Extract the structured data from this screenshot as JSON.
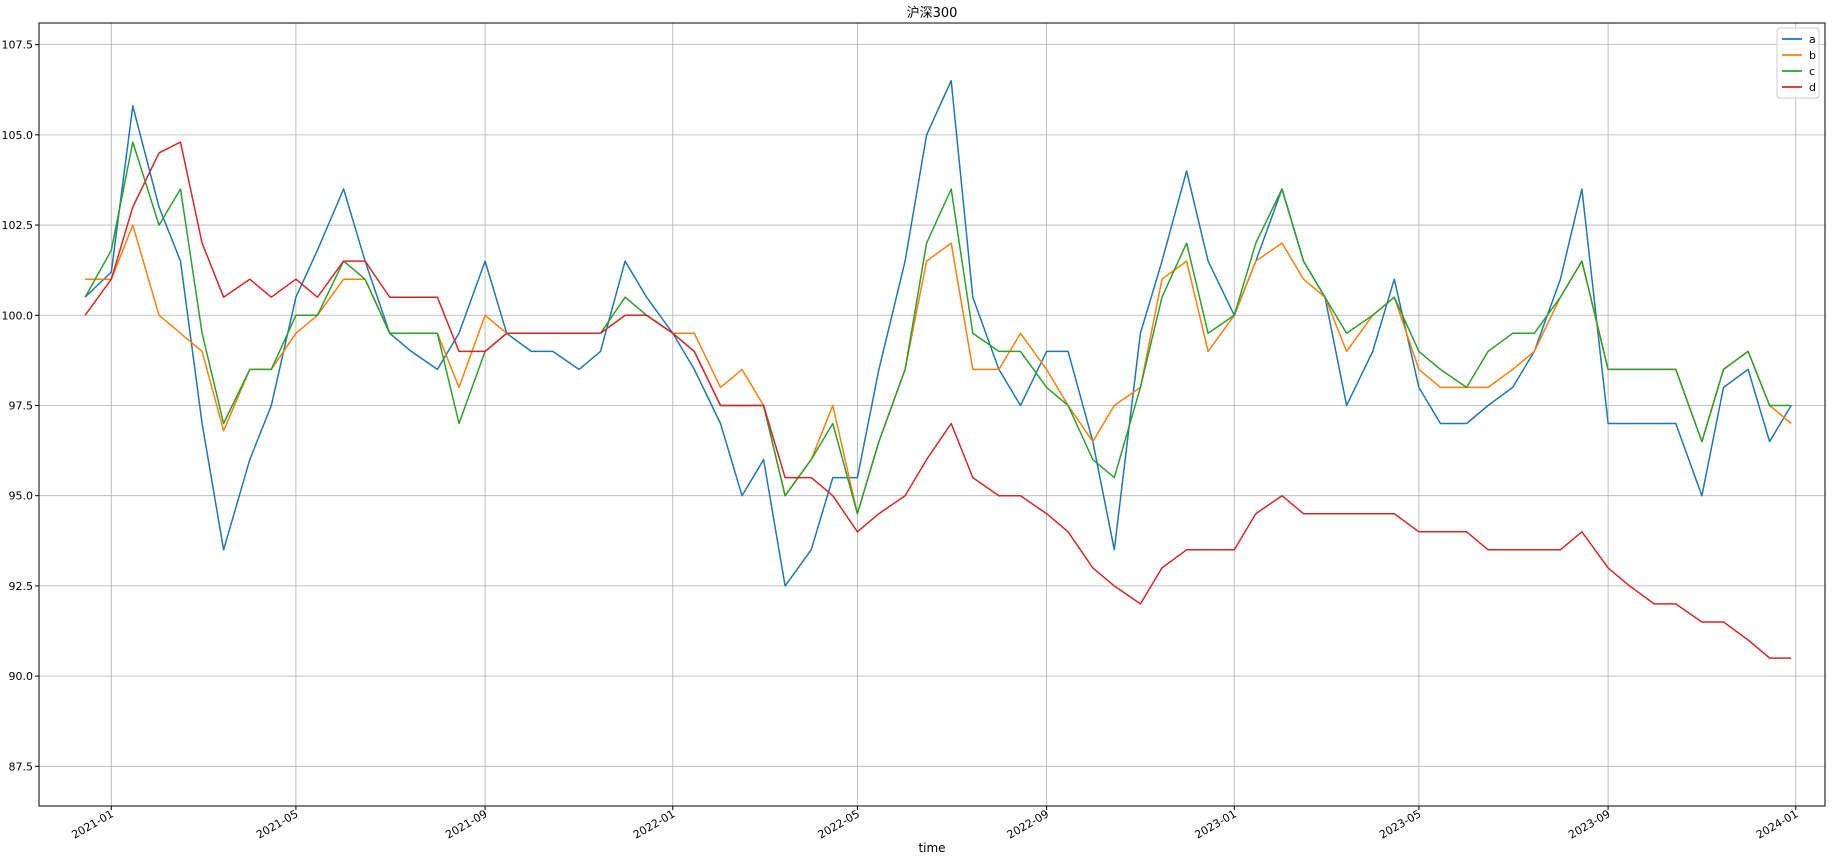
{
  "chart_data": {
    "type": "line",
    "title": "沪深300",
    "xlabel": "time",
    "ylabel": "",
    "x_axis_type": "date",
    "xlim": [
      "2020-11-15",
      "2024-01-20"
    ],
    "ylim": [
      86.4,
      108.1
    ],
    "grid": true,
    "legend_position": "top-right",
    "x_ticks": [
      "2021-01",
      "2021-05",
      "2021-09",
      "2022-01",
      "2022-05",
      "2022-09",
      "2023-01",
      "2023-05",
      "2023-09",
      "2024-01"
    ],
    "y_ticks": [
      87.5,
      90.0,
      92.5,
      95.0,
      97.5,
      100.0,
      102.5,
      105.0,
      107.5
    ],
    "x": [
      "2020-12-15",
      "2021-01-01",
      "2021-01-15",
      "2021-02-01",
      "2021-02-15",
      "2021-03-01",
      "2021-03-15",
      "2021-04-01",
      "2021-04-15",
      "2021-05-01",
      "2021-05-15",
      "2021-06-01",
      "2021-06-15",
      "2021-07-01",
      "2021-07-15",
      "2021-08-01",
      "2021-08-15",
      "2021-09-01",
      "2021-09-15",
      "2021-10-01",
      "2021-10-15",
      "2021-11-01",
      "2021-11-15",
      "2021-12-01",
      "2021-12-15",
      "2022-01-01",
      "2022-01-15",
      "2022-02-01",
      "2022-02-15",
      "2022-03-01",
      "2022-03-15",
      "2022-04-01",
      "2022-04-15",
      "2022-05-01",
      "2022-05-15",
      "2022-06-01",
      "2022-06-15",
      "2022-07-01",
      "2022-07-15",
      "2022-08-01",
      "2022-08-15",
      "2022-09-01",
      "2022-09-15",
      "2022-10-01",
      "2022-10-15",
      "2022-11-01",
      "2022-11-15",
      "2022-12-01",
      "2022-12-15",
      "2023-01-01",
      "2023-01-15",
      "2023-02-01",
      "2023-02-15",
      "2023-03-01",
      "2023-03-15",
      "2023-04-01",
      "2023-04-15",
      "2023-05-01",
      "2023-05-15",
      "2023-06-01",
      "2023-06-15",
      "2023-07-01",
      "2023-07-15",
      "2023-08-01",
      "2023-08-15",
      "2023-09-01",
      "2023-09-15",
      "2023-10-01",
      "2023-10-15",
      "2023-11-01",
      "2023-11-15",
      "2023-12-01",
      "2023-12-15",
      "2023-12-29"
    ],
    "series": [
      {
        "name": "a",
        "color": "#1f77b4",
        "values": [
          100.5,
          101.2,
          105.8,
          103.0,
          101.5,
          97.0,
          93.5,
          96.0,
          97.5,
          100.5,
          101.8,
          103.5,
          101.5,
          99.5,
          99.0,
          98.5,
          99.5,
          101.5,
          99.5,
          99.0,
          99.0,
          98.5,
          99.0,
          101.5,
          100.5,
          99.5,
          98.5,
          97.0,
          95.0,
          96.0,
          92.5,
          93.5,
          95.5,
          95.5,
          98.5,
          101.5,
          105.0,
          106.5,
          100.5,
          98.5,
          97.5,
          99.0,
          99.0,
          96.5,
          93.5,
          99.5,
          101.5,
          104.0,
          101.5,
          100.0,
          101.5,
          103.5,
          101.5,
          100.5,
          97.5,
          99.0,
          101.0,
          98.0,
          97.0,
          97.0,
          97.5,
          98.0,
          99.0,
          101.0,
          103.5,
          97.0,
          97.0,
          97.0,
          97.0,
          95.0,
          98.0,
          98.5,
          96.5,
          97.5
        ]
      },
      {
        "name": "b",
        "color": "#ff7f0e",
        "values": [
          101.0,
          101.0,
          102.5,
          100.0,
          99.5,
          99.0,
          96.8,
          98.5,
          98.5,
          99.5,
          100.0,
          101.0,
          101.0,
          99.5,
          99.5,
          99.5,
          98.0,
          100.0,
          99.5,
          99.5,
          99.5,
          99.5,
          99.5,
          100.0,
          100.0,
          99.5,
          99.5,
          98.0,
          98.5,
          97.5,
          95.0,
          96.0,
          97.5,
          94.5,
          96.5,
          98.5,
          101.5,
          102.0,
          98.5,
          98.5,
          99.5,
          98.5,
          97.5,
          96.5,
          97.5,
          98.0,
          101.0,
          101.5,
          99.0,
          100.0,
          101.5,
          102.0,
          101.0,
          100.5,
          99.0,
          100.0,
          100.5,
          98.5,
          98.0,
          98.0,
          98.0,
          98.5,
          99.0,
          100.5,
          101.5,
          98.5,
          98.5,
          98.5,
          98.5,
          96.5,
          98.5,
          99.0,
          97.5,
          97.0
        ]
      },
      {
        "name": "c",
        "color": "#2ca02c",
        "values": [
          100.5,
          101.8,
          104.8,
          102.5,
          103.5,
          99.5,
          97.0,
          98.5,
          98.5,
          100.0,
          100.0,
          101.5,
          101.0,
          99.5,
          99.5,
          99.5,
          97.0,
          99.0,
          99.5,
          99.5,
          99.5,
          99.5,
          99.5,
          100.5,
          100.0,
          99.5,
          99.0,
          97.5,
          97.5,
          97.5,
          95.0,
          96.0,
          97.0,
          94.5,
          96.5,
          98.5,
          102.0,
          103.5,
          99.5,
          99.0,
          99.0,
          98.0,
          97.5,
          96.0,
          95.5,
          98.0,
          100.5,
          102.0,
          99.5,
          100.0,
          102.0,
          103.5,
          101.5,
          100.5,
          99.5,
          100.0,
          100.5,
          99.0,
          98.5,
          98.0,
          99.0,
          99.5,
          99.5,
          100.5,
          101.5,
          98.5,
          98.5,
          98.5,
          98.5,
          96.5,
          98.5,
          99.0,
          97.5,
          97.5
        ]
      },
      {
        "name": "d",
        "color": "#d62728",
        "values": [
          100.0,
          101.0,
          103.0,
          104.5,
          104.8,
          102.0,
          100.5,
          101.0,
          100.5,
          101.0,
          100.5,
          101.5,
          101.5,
          100.5,
          100.5,
          100.5,
          99.0,
          99.0,
          99.5,
          99.5,
          99.5,
          99.5,
          99.5,
          100.0,
          100.0,
          99.5,
          99.0,
          97.5,
          97.5,
          97.5,
          95.5,
          95.5,
          95.0,
          94.0,
          94.5,
          95.0,
          96.0,
          97.0,
          95.5,
          95.0,
          95.0,
          94.5,
          94.0,
          93.0,
          92.5,
          92.0,
          93.0,
          93.5,
          93.5,
          93.5,
          94.5,
          95.0,
          94.5,
          94.5,
          94.5,
          94.5,
          94.5,
          94.0,
          94.0,
          94.0,
          93.5,
          93.5,
          93.5,
          93.5,
          94.0,
          93.0,
          92.5,
          92.0,
          92.0,
          91.5,
          91.5,
          91.0,
          90.5,
          90.5
        ]
      }
    ]
  }
}
